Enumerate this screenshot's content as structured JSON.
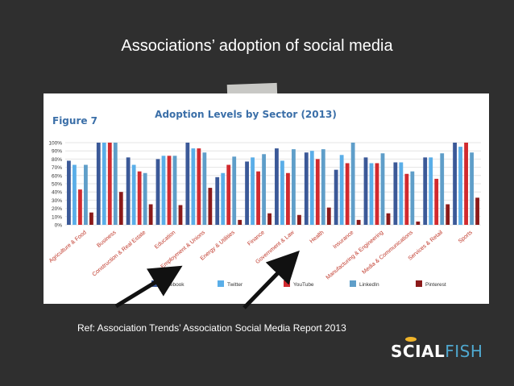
{
  "slide": {
    "title": "Associations’ adoption of social media",
    "reference": "Ref: Association Trends’ Association Social Media Report 2013",
    "logo": {
      "part1": "S",
      "part2": "CIAL",
      "part3": "FISH"
    }
  },
  "colors": {
    "background": "#2f2f2f",
    "panel": "#ffffff",
    "accent": "#3b6fa8",
    "logo_blue": "#4fa8cf",
    "logo_fish": "#f0b429"
  },
  "chart_data": {
    "type": "bar",
    "figure_label": "Figure 7",
    "title": "Adoption Levels by Sector (2013)",
    "xlabel": "",
    "ylabel": "",
    "ylim": [
      0,
      100
    ],
    "yticks": [
      "0%",
      "10%",
      "20%",
      "30%",
      "40%",
      "50%",
      "60%",
      "70%",
      "80%",
      "90%",
      "100%"
    ],
    "grid": true,
    "legend_position": "bottom",
    "categories": [
      "Agriculture & Food",
      "Business",
      "Construction & Real Estate",
      "Education",
      "Employment & Unions",
      "Energy & Utilities",
      "Finance",
      "Government & Law",
      "Health",
      "Insurance",
      "Manufacturing & Engineering",
      "Media & Communications",
      "Services & Retail",
      "Sports"
    ],
    "series": [
      {
        "name": "Facebook",
        "color": "#3b5998",
        "values": [
          78,
          100,
          82,
          80,
          100,
          58,
          77,
          93,
          88,
          67,
          82,
          76,
          82,
          100
        ]
      },
      {
        "name": "Twitter",
        "color": "#5aaee8",
        "values": [
          73,
          100,
          73,
          84,
          93,
          63,
          82,
          78,
          90,
          85,
          75,
          76,
          82,
          95
        ]
      },
      {
        "name": "YouTube",
        "color": "#d12a2f",
        "values": [
          43,
          100,
          65,
          84,
          93,
          73,
          65,
          63,
          80,
          75,
          75,
          62,
          56,
          100
        ]
      },
      {
        "name": "LinkedIn",
        "color": "#5f9ec9",
        "values": [
          73,
          100,
          63,
          84,
          88,
          83,
          86,
          92,
          92,
          100,
          87,
          65,
          87,
          88
        ]
      },
      {
        "name": "Pinterest",
        "color": "#8b1a1a",
        "values": [
          15,
          40,
          25,
          24,
          45,
          6,
          14,
          12,
          21,
          6,
          14,
          4,
          25,
          33
        ]
      }
    ]
  }
}
